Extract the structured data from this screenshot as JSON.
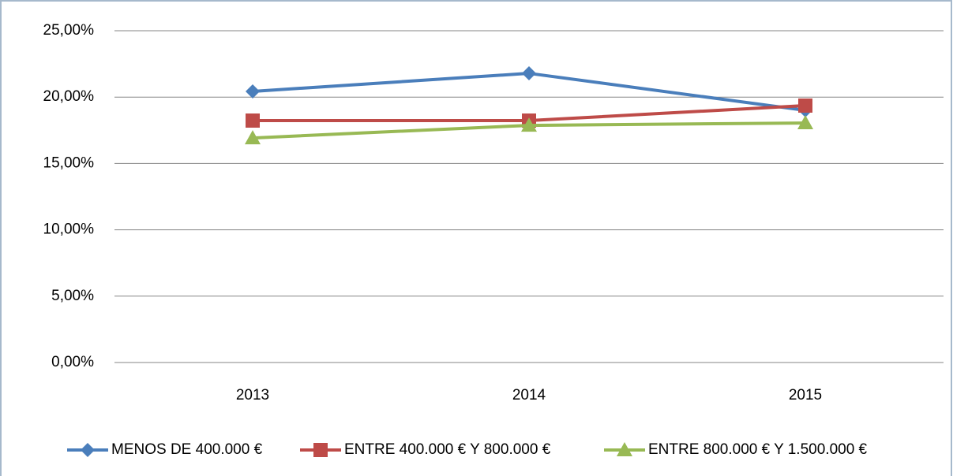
{
  "chart_data": {
    "type": "line",
    "categories": [
      "2013",
      "2014",
      "2015"
    ],
    "series": [
      {
        "name": "MENOS DE 400.000 €",
        "color": "#4a7ebb",
        "marker": "diamond",
        "values": [
          20.43,
          21.79,
          19.0
        ]
      },
      {
        "name": "ENTRE 400.000 € Y 800.000 €",
        "color": "#be4b48",
        "marker": "square",
        "values": [
          18.23,
          18.23,
          19.36
        ]
      },
      {
        "name": "ENTRE 800.000 € Y 1.500.000 €",
        "color": "#98b954",
        "marker": "triangle",
        "values": [
          16.92,
          17.87,
          18.05
        ]
      }
    ],
    "ylim": [
      0,
      25
    ],
    "yticks": [
      {
        "value": 0,
        "label": "0,00%"
      },
      {
        "value": 5,
        "label": "5,00%"
      },
      {
        "value": 10,
        "label": "10,00%"
      },
      {
        "value": 15,
        "label": "15,00%"
      },
      {
        "value": 20,
        "label": "20,00%"
      },
      {
        "value": 25,
        "label": "25,00%"
      }
    ],
    "grid": true,
    "legend": "bottom"
  }
}
